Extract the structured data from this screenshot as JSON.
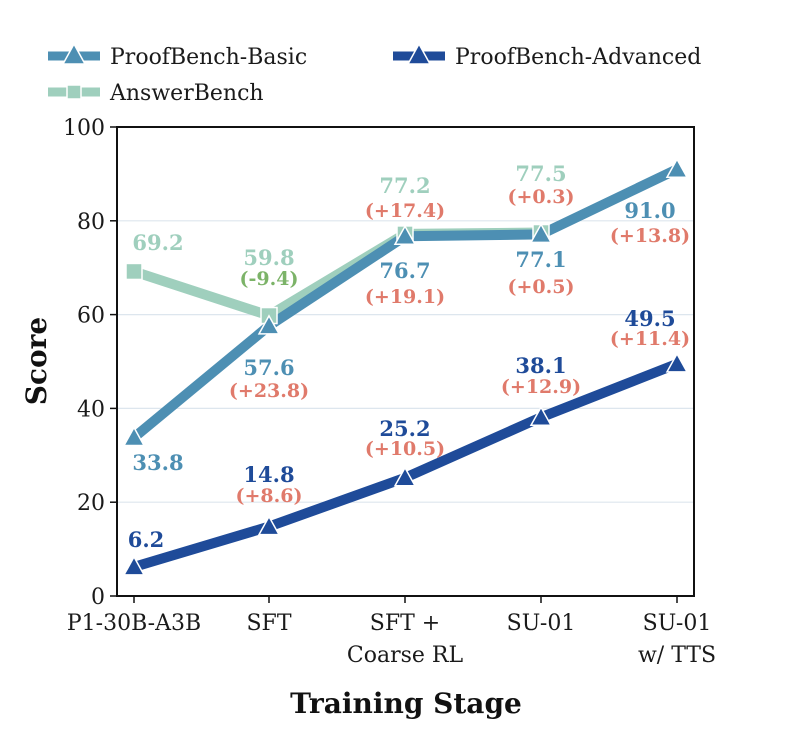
{
  "chart_data": {
    "type": "line",
    "categories": [
      "P1-30B-A3B",
      "SFT",
      "SFT +\nCoarse RL",
      "SU-01",
      "SU-01\nw/ TTS"
    ],
    "xlabel": "Training Stage",
    "ylabel": "Score",
    "ylim": [
      0,
      100
    ],
    "yticks": [
      0,
      20,
      40,
      60,
      80,
      100
    ],
    "grid": "horizontal",
    "legend_position": "top",
    "series": [
      {
        "name": "ProofBench-Basic",
        "key": "basic",
        "color": "#4d8fb3",
        "marker": "triangle",
        "values": [
          33.8,
          57.6,
          76.7,
          77.1,
          91.0
        ],
        "value_labels": [
          "33.8",
          "57.6",
          "76.7",
          "77.1",
          "91.0"
        ],
        "delta_labels": [
          "",
          "(+23.8)",
          "(+19.1)",
          "(+0.5)",
          "(+13.8)"
        ]
      },
      {
        "name": "ProofBench-Advanced",
        "key": "advanced",
        "color": "#1f4b99",
        "marker": "triangle",
        "values": [
          6.2,
          14.8,
          25.2,
          38.1,
          49.5
        ],
        "value_labels": [
          "6.2",
          "14.8",
          "25.2",
          "38.1",
          "49.5"
        ],
        "delta_labels": [
          "",
          "(+8.6)",
          "(+10.5)",
          "(+12.9)",
          "(+11.4)"
        ]
      },
      {
        "name": "AnswerBench",
        "key": "answer",
        "color": "#9fcfbd",
        "marker": "square",
        "values": [
          69.2,
          59.8,
          77.2,
          77.5,
          null
        ],
        "value_labels": [
          "69.2",
          "59.8",
          "77.2",
          "77.5",
          ""
        ],
        "delta_labels": [
          "",
          "(-9.4)",
          "(+17.4)",
          "(+0.3)",
          ""
        ]
      }
    ],
    "delta_colors": {
      "positive": "#e07a6b",
      "negative": "#7cb368"
    }
  }
}
